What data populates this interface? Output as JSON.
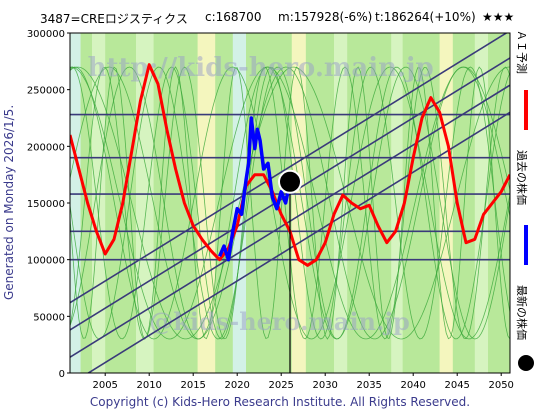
{
  "header": {
    "code": "3487=CREロジスティクス",
    "current": "c:168700",
    "mean": "m:157928(-6%)",
    "target": "t:186264(+10%)",
    "stars": "★★★"
  },
  "side_label": "Generated on Monday 2026/1/5.",
  "legend": [
    {
      "label": "ＡＩ予測",
      "color": "#ff0000"
    },
    {
      "label": "過去の株価",
      "color": "#0000ff"
    },
    {
      "label": "最新の株価",
      "color": "#000000"
    }
  ],
  "copyright": "Copyright (c) Kids-Hero Research Institute. All Rights Reserved.",
  "watermarks": [
    "http://kids-hero.main.jp",
    "@kids-hero.main.jp"
  ],
  "colors": {
    "background_green": "#b8e89a",
    "band_light": "#d9f5c4",
    "band_yellow": "#fbf7c2",
    "band_cyan": "#d6f2ee",
    "prediction": "#ff0000",
    "history": "#0000ff",
    "grid_line": "#3a3a7a"
  },
  "chart_data": {
    "type": "line",
    "xlim": [
      2001,
      2051
    ],
    "ylim": [
      0,
      300000
    ],
    "x_ticks": [
      2005,
      2010,
      2015,
      2020,
      2025,
      2030,
      2035,
      2040,
      2045,
      2050
    ],
    "y_ticks": [
      0,
      50000,
      100000,
      150000,
      200000,
      250000,
      300000
    ],
    "horizontal_levels": [
      100000,
      125000,
      157928,
      190000,
      228000
    ],
    "trend_lines": [
      {
        "x": [
          2001,
          2051
        ],
        "y": [
          38000,
          278000
        ]
      },
      {
        "x": [
          2001,
          2051
        ],
        "y": [
          62000,
          302000
        ]
      },
      {
        "x": [
          2001,
          2051
        ],
        "y": [
          14000,
          254000
        ]
      },
      {
        "x": [
          2001,
          2051
        ],
        "y": [
          -10000,
          230000
        ]
      }
    ],
    "latest_point": {
      "x": 2026.0,
      "y": 168700
    },
    "series": [
      {
        "name": "ＡＩ予測",
        "color": "#ff0000",
        "x": [
          2001,
          2002,
          2003,
          2004,
          2005,
          2006,
          2007,
          2008,
          2009,
          2010,
          2011,
          2012,
          2013,
          2014,
          2015,
          2016,
          2017,
          2018,
          2019,
          2020,
          2021,
          2022,
          2023,
          2024,
          2025,
          2026,
          2027,
          2028,
          2029,
          2030,
          2031,
          2032,
          2033,
          2034,
          2035,
          2036,
          2037,
          2038,
          2039,
          2040,
          2041,
          2042,
          2043,
          2044,
          2045,
          2046,
          2047,
          2048,
          2049,
          2050,
          2051
        ],
        "y": [
          210000,
          180000,
          150000,
          125000,
          105000,
          118000,
          150000,
          195000,
          240000,
          272000,
          255000,
          215000,
          180000,
          150000,
          130000,
          118000,
          108000,
          100000,
          110000,
          130000,
          165000,
          175000,
          175000,
          160000,
          140000,
          125000,
          100000,
          95000,
          100000,
          115000,
          140000,
          157000,
          150000,
          145000,
          148000,
          130000,
          115000,
          125000,
          150000,
          190000,
          225000,
          243000,
          230000,
          200000,
          150000,
          115000,
          118000,
          140000,
          150000,
          160000,
          175000
        ]
      },
      {
        "name": "過去の株価",
        "color": "#0000ff",
        "x": [
          2018.0,
          2018.5,
          2019.0,
          2019.5,
          2020.0,
          2020.5,
          2021.0,
          2021.3,
          2021.6,
          2022.0,
          2022.3,
          2022.6,
          2023.0,
          2023.5,
          2024.0,
          2024.5,
          2025.0,
          2025.5,
          2026.0
        ],
        "y": [
          103000,
          112000,
          100000,
          125000,
          145000,
          140000,
          170000,
          185000,
          225000,
          198000,
          215000,
          205000,
          180000,
          185000,
          155000,
          145000,
          160000,
          150000,
          168700
        ]
      }
    ]
  }
}
